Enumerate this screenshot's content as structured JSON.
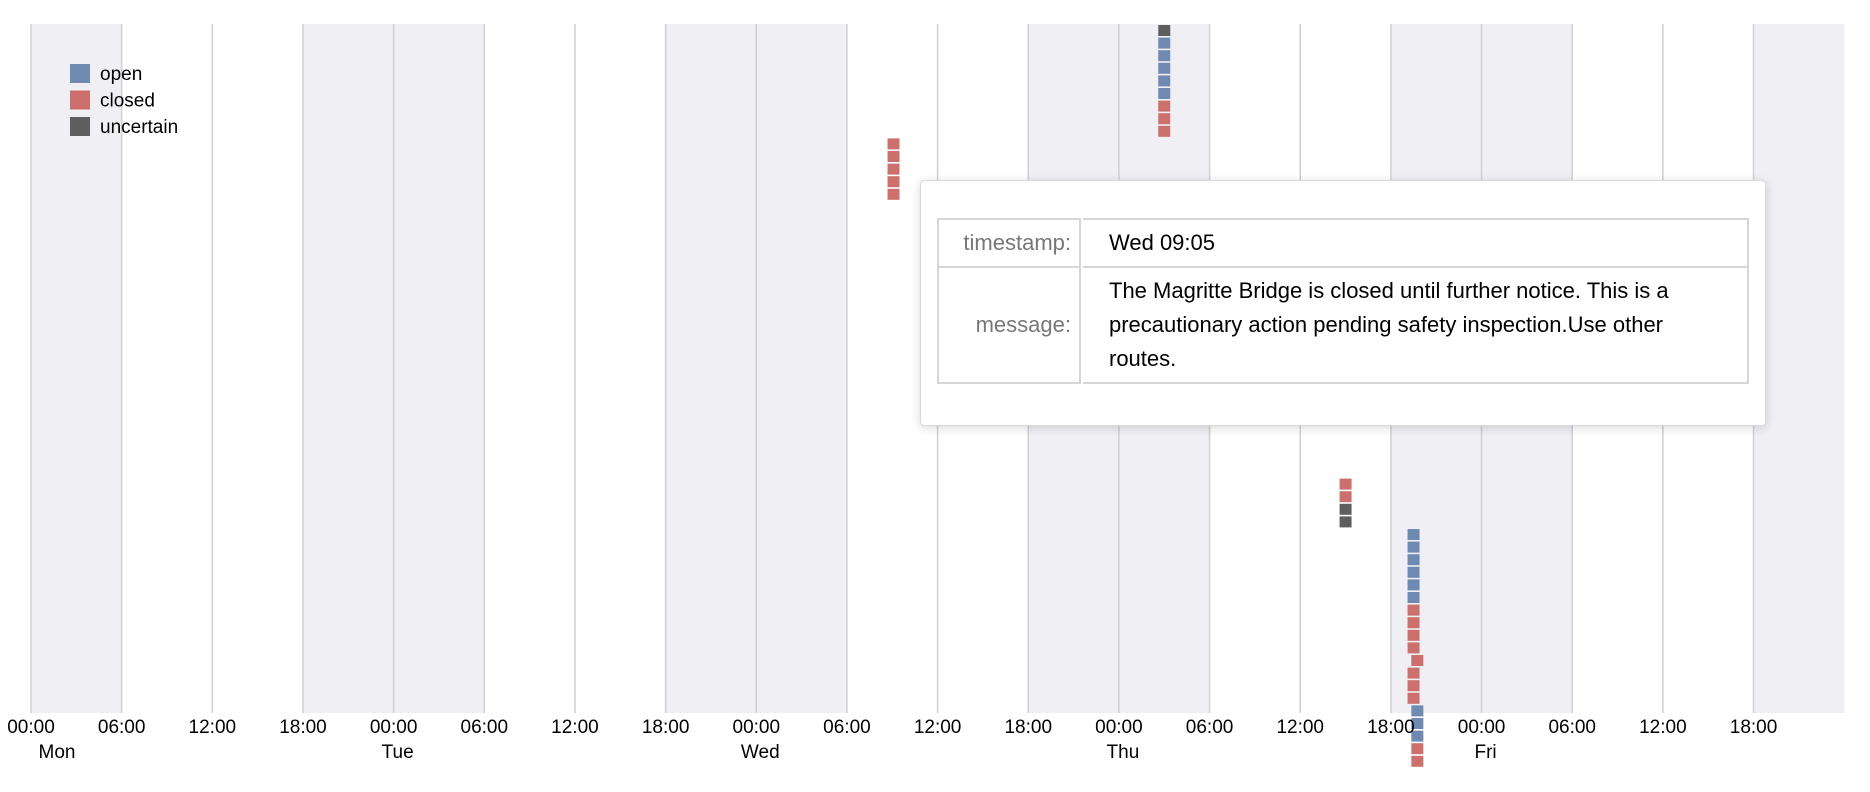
{
  "chart_data": {
    "type": "scatter",
    "legend": {
      "placement": "top-left",
      "entries": [
        {
          "name": "open",
          "color": "#6e8ab0"
        },
        {
          "name": "closed",
          "color": "#cc706d"
        },
        {
          "name": "uncertain",
          "color": "#5e5e5e"
        }
      ]
    },
    "x_axis": {
      "start_hours": 0,
      "end_hours": 120,
      "tick_step_hours": 6,
      "tick_labels": [
        "00:00",
        "06:00",
        "12:00",
        "18:00",
        "00:00",
        "06:00",
        "12:00",
        "18:00",
        "00:00",
        "06:00",
        "12:00",
        "18:00",
        "00:00",
        "06:00",
        "12:00",
        "18:00",
        "00:00",
        "06:00",
        "12:00",
        "18:00"
      ],
      "day_labels": [
        "Mon",
        "Tue",
        "Wed",
        "Thu",
        "Fri"
      ],
      "shaded_bands_hours": [
        [
          0,
          6
        ],
        [
          18,
          30
        ],
        [
          42,
          54
        ],
        [
          66,
          78
        ],
        [
          90,
          102
        ],
        [
          114,
          120
        ]
      ]
    },
    "grid": true,
    "points": [
      {
        "day": "Thu",
        "time": "03:00",
        "status": "uncertain",
        "stack": 0
      },
      {
        "day": "Thu",
        "time": "03:00",
        "status": "open",
        "stack": 1
      },
      {
        "day": "Thu",
        "time": "03:00",
        "status": "open",
        "stack": 2
      },
      {
        "day": "Thu",
        "time": "03:00",
        "status": "open",
        "stack": 3
      },
      {
        "day": "Thu",
        "time": "03:00",
        "status": "open",
        "stack": 4
      },
      {
        "day": "Thu",
        "time": "03:00",
        "status": "open",
        "stack": 5
      },
      {
        "day": "Thu",
        "time": "03:00",
        "status": "closed",
        "stack": 6
      },
      {
        "day": "Thu",
        "time": "03:00",
        "status": "closed",
        "stack": 7
      },
      {
        "day": "Thu",
        "time": "03:00",
        "status": "closed",
        "stack": 8
      },
      {
        "day": "Wed",
        "time": "09:05",
        "status": "closed",
        "stack": 9
      },
      {
        "day": "Wed",
        "time": "09:05",
        "status": "closed",
        "stack": 10
      },
      {
        "day": "Wed",
        "time": "09:05",
        "status": "closed",
        "stack": 11
      },
      {
        "day": "Wed",
        "time": "09:05",
        "status": "closed",
        "stack": 12
      },
      {
        "day": "Wed",
        "time": "09:05",
        "status": "closed",
        "stack": 13
      },
      {
        "day": "Thu",
        "time": "15:00",
        "status": "closed",
        "stack": 36
      },
      {
        "day": "Thu",
        "time": "15:00",
        "status": "closed",
        "stack": 37
      },
      {
        "day": "Thu",
        "time": "15:00",
        "status": "uncertain",
        "stack": 38
      },
      {
        "day": "Thu",
        "time": "15:00",
        "status": "uncertain",
        "stack": 39
      },
      {
        "day": "Thu",
        "time": "19:30",
        "status": "open",
        "stack": 40
      },
      {
        "day": "Thu",
        "time": "19:30",
        "status": "open",
        "stack": 41
      },
      {
        "day": "Thu",
        "time": "19:30",
        "status": "open",
        "stack": 42
      },
      {
        "day": "Thu",
        "time": "19:30",
        "status": "open",
        "stack": 43
      },
      {
        "day": "Thu",
        "time": "19:30",
        "status": "open",
        "stack": 44
      },
      {
        "day": "Thu",
        "time": "19:30",
        "status": "open",
        "stack": 45
      },
      {
        "day": "Thu",
        "time": "19:30",
        "status": "closed",
        "stack": 46
      },
      {
        "day": "Thu",
        "time": "19:30",
        "status": "closed",
        "stack": 47
      },
      {
        "day": "Thu",
        "time": "19:30",
        "status": "closed",
        "stack": 48
      },
      {
        "day": "Thu",
        "time": "19:30",
        "status": "closed",
        "stack": 49
      },
      {
        "day": "Thu",
        "time": "19:45",
        "status": "closed",
        "stack": 50
      },
      {
        "day": "Thu",
        "time": "19:30",
        "status": "closed",
        "stack": 51
      },
      {
        "day": "Thu",
        "time": "19:30",
        "status": "closed",
        "stack": 52
      },
      {
        "day": "Thu",
        "time": "19:30",
        "status": "closed",
        "stack": 53
      },
      {
        "day": "Thu",
        "time": "19:45",
        "status": "open",
        "stack": 54
      },
      {
        "day": "Thu",
        "time": "19:45",
        "status": "open",
        "stack": 55
      },
      {
        "day": "Thu",
        "time": "19:45",
        "status": "open",
        "stack": 56
      },
      {
        "day": "Thu",
        "time": "19:45",
        "status": "closed",
        "stack": 57
      },
      {
        "day": "Thu",
        "time": "19:45",
        "status": "closed",
        "stack": 58
      }
    ]
  },
  "tooltip": {
    "timestamp_label": "timestamp:",
    "timestamp_value": "Wed 09:05",
    "message_label": "message:",
    "message_value": "The Magritte Bridge is closed until further notice. This is a precautionary action pending safety inspection.Use other routes."
  }
}
